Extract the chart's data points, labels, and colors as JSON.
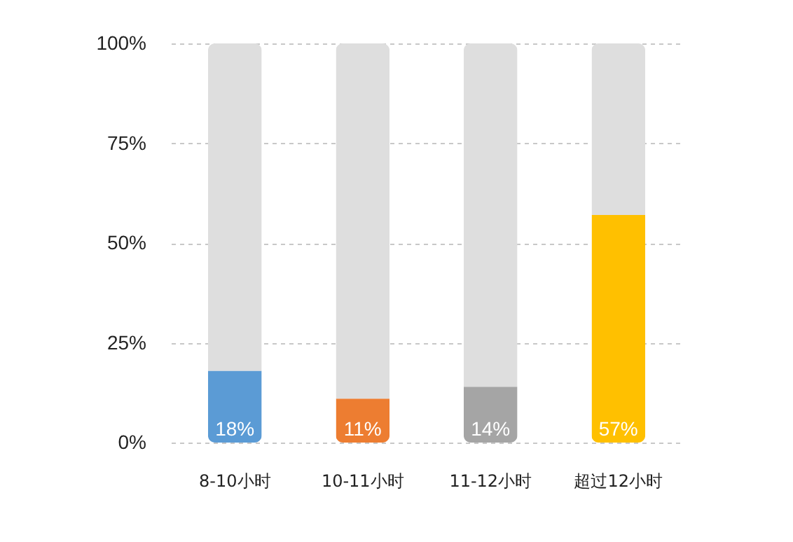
{
  "chart_data": {
    "type": "bar",
    "stacked": true,
    "categories": [
      "8-10小时",
      "10-11小时",
      "11-12小时",
      "超过12小时"
    ],
    "series": [
      {
        "colors": [
          "#5b9bd5",
          "#ed7d31",
          "#a5a5a5",
          "#ffc000"
        ],
        "values": [
          18,
          11,
          14,
          57
        ],
        "value_labels": [
          "18%",
          "11%",
          "14%",
          "57%"
        ]
      },
      {
        "color": "#dedede",
        "values": [
          82,
          89,
          86,
          43
        ]
      }
    ],
    "ylim": [
      0,
      100
    ],
    "yticks": [
      {
        "value": 0,
        "label": "0%"
      },
      {
        "value": 25,
        "label": "25%"
      },
      {
        "value": 50,
        "label": "50%"
      },
      {
        "value": 75,
        "label": "75%"
      },
      {
        "value": 100,
        "label": "100%"
      }
    ],
    "grid": "y"
  }
}
